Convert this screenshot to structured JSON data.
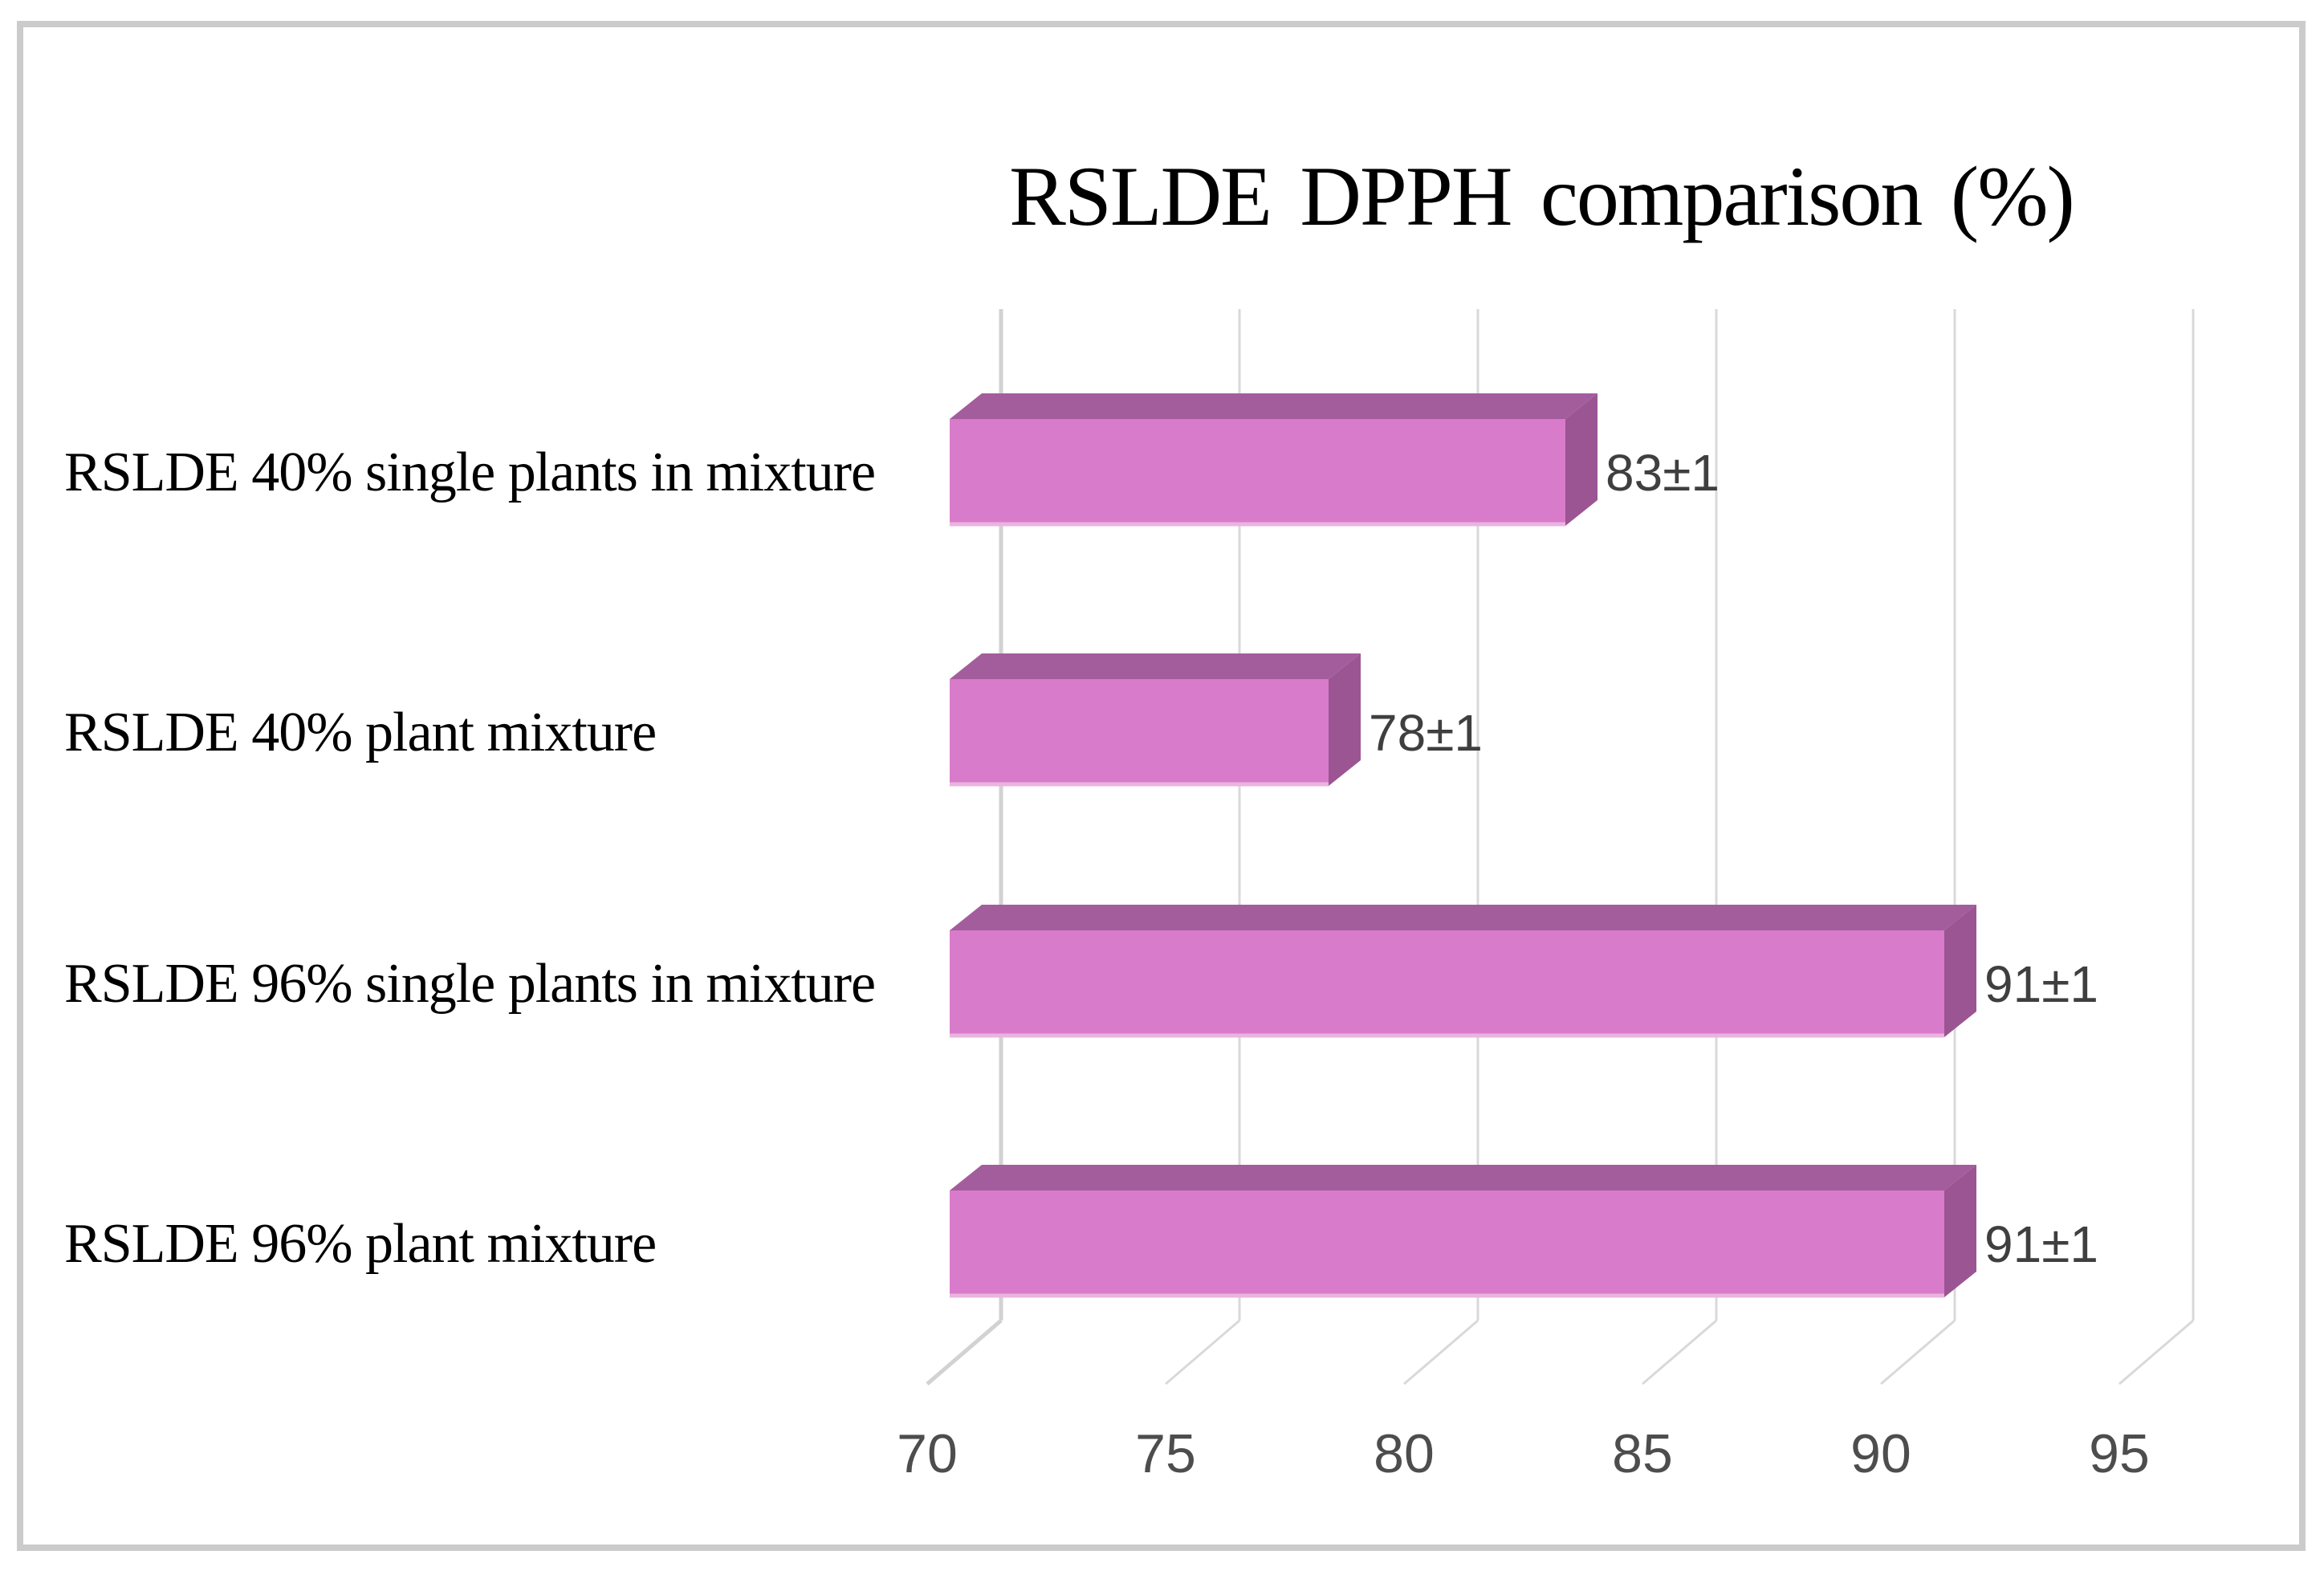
{
  "figure": {
    "background_color": "#FFFFFF",
    "border_color": "#CBCBCB"
  },
  "chart_data": {
    "type": "bar",
    "orientation": "horizontal",
    "projection": "3d",
    "title": "RSLDE DPPH comparison (%)",
    "categories": [
      "RSLDE 40% single plants in mixture",
      "RSLDE 40% plant mixture",
      "RSLDE 96% single plants in mixture",
      "RSLDE 96% plant mixture"
    ],
    "values": [
      83,
      78,
      91,
      91
    ],
    "value_labels": [
      "83±1",
      "78±1",
      "91±1",
      "91±1"
    ],
    "xlim": [
      70,
      95
    ],
    "x_ticks": [
      70,
      75,
      80,
      85,
      90,
      95
    ],
    "grid": true,
    "legend": false,
    "colors": {
      "bar_front": "#D97BCB",
      "bar_top": "#A45D9C",
      "bar_side": "#9B5592",
      "bar_bottom_edge": "#E9B4DF",
      "gridline": "#D9D9D9",
      "axis_line": "#D2D2D2",
      "tick_label": "#4D4D4D",
      "value_label": "#3F3F3F",
      "title": "#000000",
      "category_label": "#000000"
    }
  }
}
